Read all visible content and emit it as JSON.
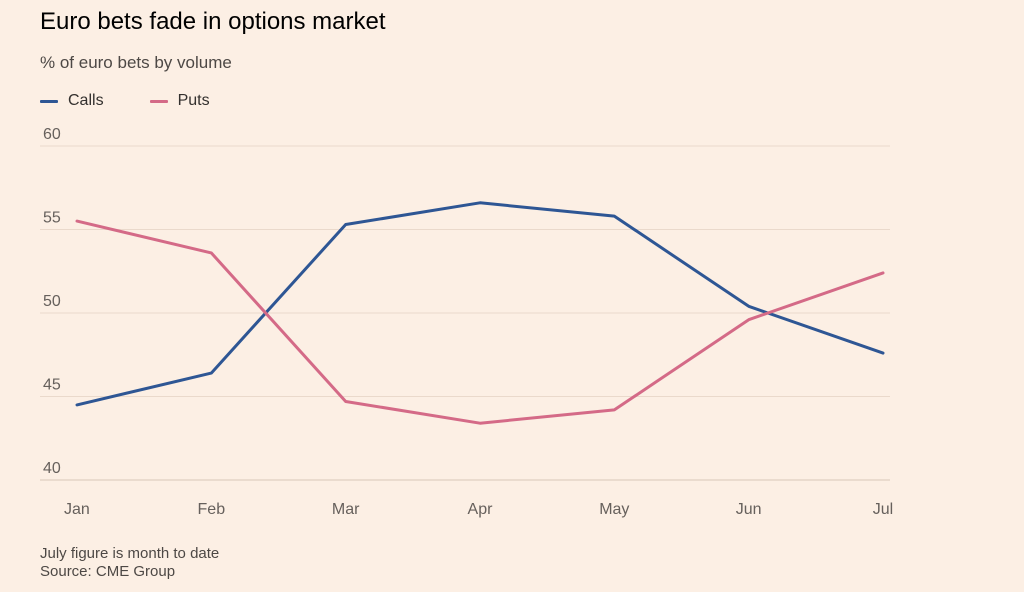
{
  "chart_data": {
    "type": "line",
    "title": "Euro bets fade in options market",
    "subtitle": "% of euro bets by volume",
    "categories": [
      "Jan",
      "Feb",
      "Mar",
      "Apr",
      "May",
      "Jun",
      "Jul"
    ],
    "series": [
      {
        "name": "Calls",
        "color": "#2e5694",
        "values": [
          44.5,
          46.4,
          55.3,
          56.6,
          55.8,
          50.4,
          47.6
        ]
      },
      {
        "name": "Puts",
        "color": "#d46a87",
        "values": [
          55.5,
          53.6,
          44.7,
          43.4,
          44.2,
          49.6,
          52.4
        ]
      }
    ],
    "yticks": [
      "60",
      "55",
      "50",
      "45",
      "40"
    ],
    "ylim": [
      40,
      60
    ],
    "grid": true,
    "legend_position": "top-left",
    "note": "July figure is month to date",
    "source": "Source: CME Group"
  },
  "colors": {
    "background": "#fcefe4",
    "gridline": "#ead9cb",
    "calls": "#2e5694",
    "puts": "#d46a87"
  }
}
